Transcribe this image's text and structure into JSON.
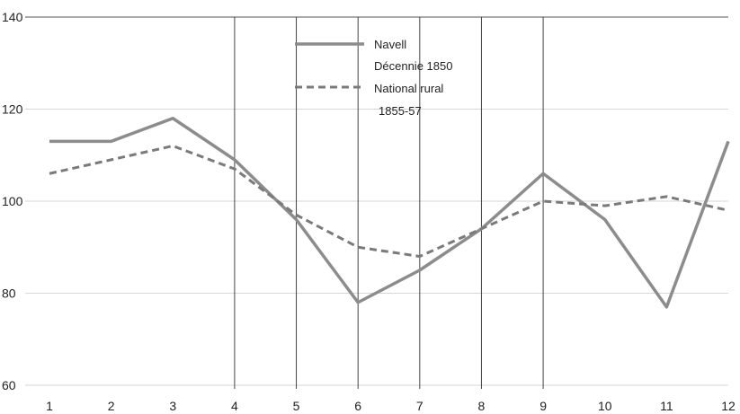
{
  "chart_data": {
    "type": "line",
    "x": [
      1,
      2,
      3,
      4,
      5,
      6,
      7,
      8,
      9,
      10,
      11,
      12
    ],
    "x_tick_labels": [
      "1",
      "2",
      "3",
      "4",
      "5",
      "6",
      "7",
      "8",
      "9",
      "10",
      "11",
      "12"
    ],
    "ylim": [
      60,
      140
    ],
    "y_ticks": [
      60,
      80,
      100,
      120,
      140
    ],
    "y_tick_labels": [
      "60",
      "80",
      "100",
      "120",
      "140"
    ],
    "grid": "horizontal gridlines",
    "vertical_markers_at_x": [
      4,
      5,
      6,
      7,
      8,
      9
    ],
    "legend_position": "top-center",
    "series": [
      {
        "name_lines": [
          "Navell",
          "Décennie 1850"
        ],
        "style": "solid",
        "color": "#8c8c8c",
        "values": [
          113,
          113,
          118,
          109,
          96,
          78,
          85,
          94,
          106,
          96,
          77,
          113
        ]
      },
      {
        "name_lines": [
          "National rural",
          "1855-57"
        ],
        "style": "dashed",
        "color": "#7a7a7a",
        "values": [
          106,
          109,
          112,
          107,
          97,
          90,
          88,
          94,
          100,
          99,
          101,
          98
        ]
      }
    ]
  }
}
